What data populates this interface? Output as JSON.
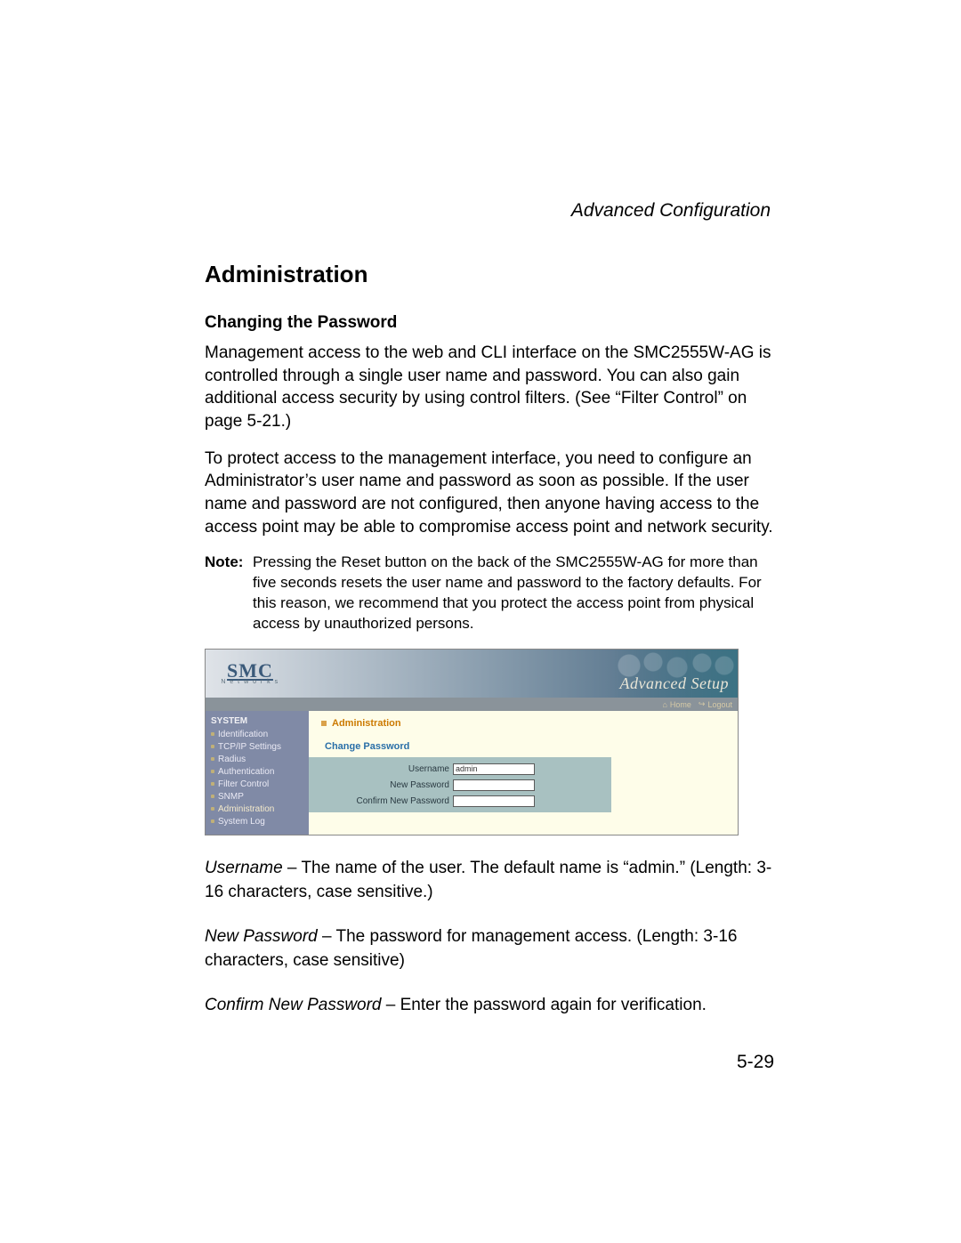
{
  "header": {
    "right_title": "Advanced Configuration"
  },
  "section": {
    "title": "Administration"
  },
  "sub": {
    "title": "Changing the Password"
  },
  "para1": "Management access to the web and CLI interface on the SMC2555W-AG is controlled through a single user name and password. You can also gain additional access security by using control filters. (See “Filter Control” on page 5-21.)",
  "para2": "To protect access to the management interface, you need to configure an Administrator’s user name and password as soon as possible. If the user name and password are not configured, then anyone having access to the access point may be able to compromise access point and network security.",
  "note": {
    "label": "Note:",
    "body": "Pressing the Reset button on the back of the SMC2555W-AG for more than five seconds resets the user name and password to the factory defaults. For this reason, we recommend that you protect the access point from physical access by unauthorized persons."
  },
  "screenshot": {
    "logo_main": "SMC",
    "logo_sub": "N e t w o r k s",
    "banner_text": "Advanced Setup",
    "subbar_home": "Home",
    "subbar_logout": "Logout",
    "sidebar": {
      "heading": "SYSTEM",
      "items": [
        "Identification",
        "TCP/IP Settings",
        "Radius",
        "Authentication",
        "Filter Control",
        "SNMP",
        "Administration",
        "System Log"
      ],
      "active_index": 6
    },
    "content": {
      "title": "Administration",
      "subtitle": "Change Password",
      "rows": [
        {
          "label": "Username",
          "value": "admin"
        },
        {
          "label": "New Password",
          "value": ""
        },
        {
          "label": "Confirm New Password",
          "value": ""
        }
      ]
    }
  },
  "defs": {
    "username_term": "Username",
    "username_body": " – The name of the user. The default name is “admin.” (Length: 3-16 characters, case sensitive.)",
    "newpw_term": "New Password",
    "newpw_body": " – The password for management access. (Length: 3-16 characters, case sensitive)",
    "confirm_term": "Confirm New Password",
    "confirm_body": " – Enter the password again for verification."
  },
  "page_number": "5-29",
  "icons": {
    "home": "⌂",
    "logout": "↪"
  }
}
